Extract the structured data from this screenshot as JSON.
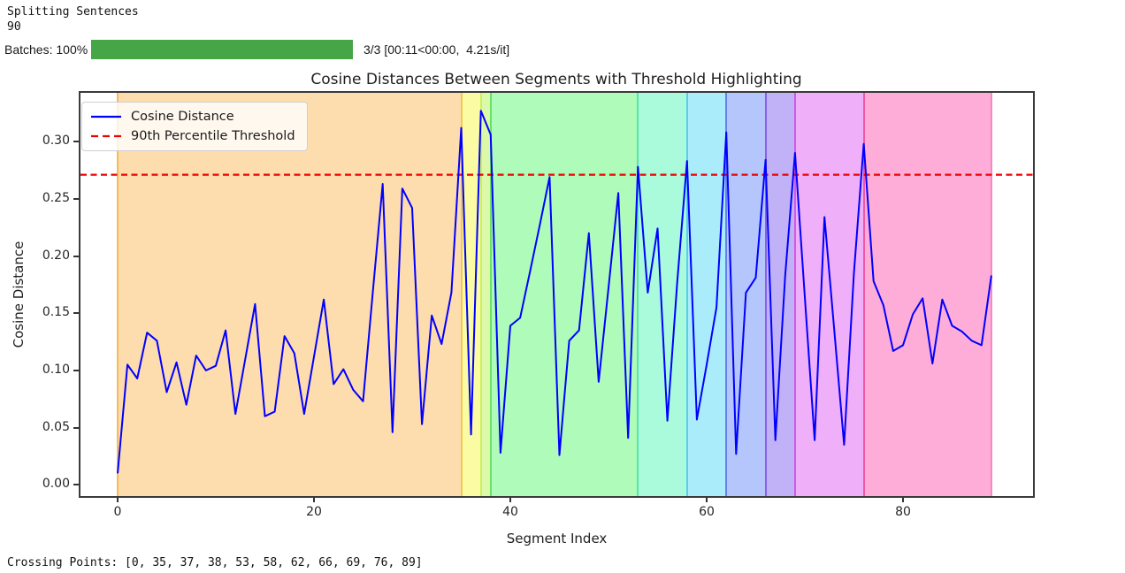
{
  "console": {
    "line1": "Splitting Sentences",
    "line2": "90"
  },
  "progress": {
    "label": "Batches: 100%",
    "percent": 100,
    "bar_color": "#46A546",
    "suffix": "3/3 [00:11<00:00,  4.21s/it]"
  },
  "chart_data": {
    "type": "line",
    "title": "Cosine Distances Between Segments with Threshold Highlighting",
    "xlabel": "Segment Index",
    "ylabel": "Cosine Distance",
    "xticks": [
      0,
      20,
      40,
      60,
      80
    ],
    "yticks": [
      "0.00",
      "0.05",
      "0.10",
      "0.15",
      "0.20",
      "0.25",
      "0.30"
    ],
    "xlim": [
      -3.96,
      93.4
    ],
    "ylim": [
      -0.011,
      0.344
    ],
    "grid": false,
    "legend_position": "upper-left",
    "series": [
      {
        "name": "Cosine Distance",
        "color": "#0000FF",
        "x_start": 0,
        "values": [
          0.01,
          0.105,
          0.093,
          0.133,
          0.126,
          0.081,
          0.107,
          0.07,
          0.113,
          0.1,
          0.104,
          0.135,
          0.062,
          0.11,
          0.158,
          0.06,
          0.064,
          0.13,
          0.115,
          0.062,
          0.112,
          0.162,
          0.088,
          0.101,
          0.083,
          0.073,
          0.169,
          0.263,
          0.046,
          0.259,
          0.242,
          0.053,
          0.148,
          0.123,
          0.168,
          0.312,
          0.044,
          0.327,
          0.306,
          0.028,
          0.139,
          0.146,
          0.186,
          0.227,
          0.269,
          0.026,
          0.126,
          0.135,
          0.22,
          0.09,
          0.172,
          0.255,
          0.041,
          0.278,
          0.168,
          0.224,
          0.056,
          0.177,
          0.283,
          0.057,
          0.105,
          0.155,
          0.308,
          0.027,
          0.168,
          0.181,
          0.284,
          0.039,
          0.183,
          0.29,
          0.164,
          0.039,
          0.234,
          0.135,
          0.035,
          0.185,
          0.298,
          0.178,
          0.157,
          0.117,
          0.122,
          0.149,
          0.163,
          0.106,
          0.162,
          0.139,
          0.134,
          0.126,
          0.122,
          0.183
        ]
      }
    ],
    "threshold": {
      "label": "90th Percentile Threshold",
      "value": 0.271,
      "color": "#EE0000",
      "style": "dashed"
    },
    "crossing_points": [
      0,
      35,
      37,
      38,
      53,
      58,
      62,
      66,
      69,
      76,
      89
    ],
    "regions": [
      {
        "from": 0,
        "to": 35,
        "fill": "#FDDCAE"
      },
      {
        "from": 35,
        "to": 37,
        "fill": "#FAFBA3"
      },
      {
        "from": 37,
        "to": 38,
        "fill": "#DCF9A9"
      },
      {
        "from": 38,
        "to": 53,
        "fill": "#AFFBB9"
      },
      {
        "from": 53,
        "to": 58,
        "fill": "#A9FBDB"
      },
      {
        "from": 58,
        "to": 62,
        "fill": "#ABECFB"
      },
      {
        "from": 62,
        "to": 66,
        "fill": "#B4C6FB"
      },
      {
        "from": 66,
        "to": 69,
        "fill": "#C1B2F7"
      },
      {
        "from": 69,
        "to": 76,
        "fill": "#F0AFF9"
      },
      {
        "from": 76,
        "to": 89,
        "fill": "#FDADD8"
      }
    ],
    "boundaries": [
      {
        "x": 0,
        "color": "#F7B44E"
      },
      {
        "x": 35,
        "color": "#F0C44E"
      },
      {
        "x": 37,
        "color": "#C8EE5A"
      },
      {
        "x": 38,
        "color": "#5CE05E"
      },
      {
        "x": 53,
        "color": "#4EE2A8"
      },
      {
        "x": 58,
        "color": "#52C8F0"
      },
      {
        "x": 62,
        "color": "#5C78EA"
      },
      {
        "x": 66,
        "color": "#8058E2"
      },
      {
        "x": 69,
        "color": "#D24EE2"
      },
      {
        "x": 76,
        "color": "#EE4EA2"
      },
      {
        "x": 89,
        "color": "#F87EC2"
      }
    ],
    "spine_color": "#3a3a3a"
  },
  "footer": {
    "crossing_text": "Crossing Points: [0, 35, 37, 38, 53, 58, 62, 66, 69, 76, 89]"
  }
}
